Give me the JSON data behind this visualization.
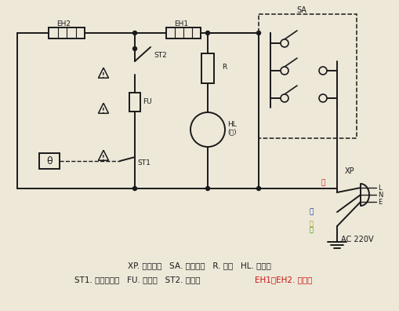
{
  "bg_color": "#ede8d8",
  "line_color": "#1a1a1a",
  "lw": 1.4,
  "legend1": "XP. 电源插头   SA. 功率开关   R. 电阴   HL. 指示灯",
  "legend2_black": "ST1. 调温温控器   FU. 熔断器   ST2. 温控器   ",
  "legend2_red": "EH1，EH2. 发热器",
  "red_color": "#cc1111",
  "blue_color": "#1133aa",
  "yellow_color": "#aa8800"
}
